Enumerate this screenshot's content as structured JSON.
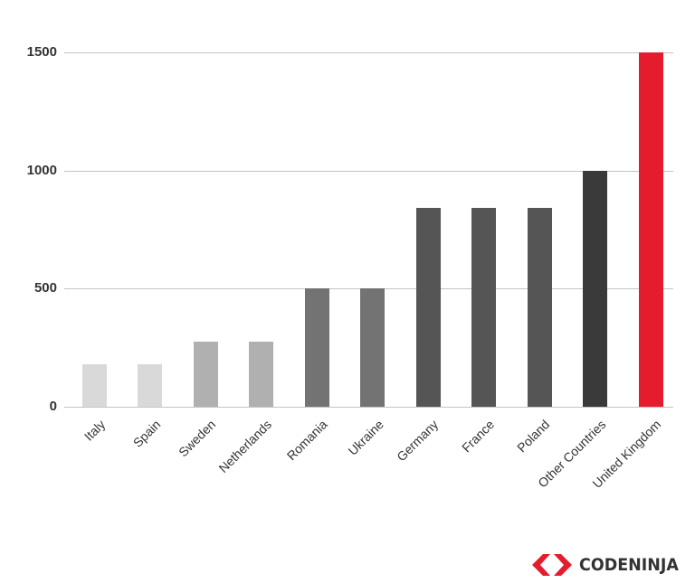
{
  "chart_data": {
    "type": "bar",
    "title": "",
    "xlabel": "",
    "ylabel": "",
    "categories": [
      "Italy",
      "Spain",
      "Sweden",
      "Netherlands",
      "Romania",
      "Ukraine",
      "Germany",
      "France",
      "Poland",
      "Other Countries",
      "United Kingdom"
    ],
    "values": [
      180,
      180,
      275,
      275,
      500,
      500,
      840,
      840,
      840,
      1000,
      1500
    ],
    "colors": [
      "#d9d9d9",
      "#d9d9d9",
      "#b0b0b0",
      "#b0b0b0",
      "#737373",
      "#737373",
      "#555555",
      "#555555",
      "#555555",
      "#3a3a3a",
      "#e41c2e"
    ],
    "yticks": [
      0,
      500,
      1000,
      1500
    ],
    "ylim": [
      0,
      1500
    ],
    "grid": true,
    "legend": null,
    "xtick_rotation": -45
  },
  "branding": {
    "logo_text": "CODENINJA",
    "logo_color": "#e41c2e"
  }
}
